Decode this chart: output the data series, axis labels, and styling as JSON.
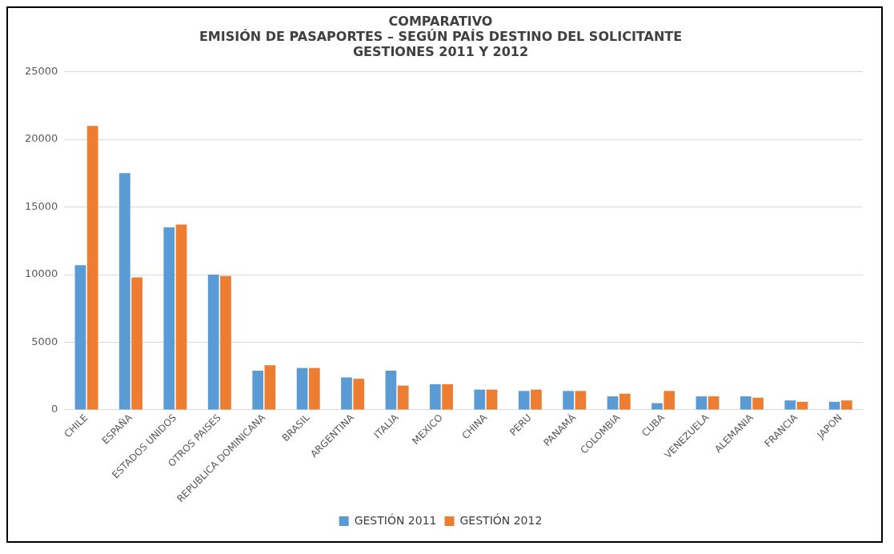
{
  "chart_data": {
    "type": "bar",
    "title": [
      "COMPARATIVO",
      "EMISIÓN DE PASAPORTES – SEGÚN PAÍS DESTINO DEL SOLICITANTE",
      "GESTIONES 2011 Y 2012"
    ],
    "categories": [
      "CHILE",
      "ESPAÑA",
      "ESTADOS UNIDOS",
      "OTROS PAISES",
      "REPUBLICA DOMINICANA",
      "BRASIL",
      "ARGENTINA",
      "ITALIA",
      "MEXICO",
      "CHINA",
      "PERU",
      "PANAMÁ",
      "COLOMBIA",
      "CUBA",
      "VENEZUELA",
      "ALEMANIA",
      "FRANCIA",
      "JAPON"
    ],
    "series": [
      {
        "name": "GESTIÓN 2011",
        "color": "#5b9bd5",
        "values": [
          10700,
          17500,
          13500,
          10000,
          2900,
          3100,
          2400,
          2900,
          1900,
          1500,
          1400,
          1400,
          1000,
          500,
          1000,
          1000,
          700,
          600
        ]
      },
      {
        "name": "GESTIÓN 2012",
        "color": "#ed7d31",
        "values": [
          21000,
          9800,
          13700,
          9900,
          3300,
          3100,
          2300,
          1800,
          1900,
          1500,
          1500,
          1400,
          1200,
          1400,
          1000,
          900,
          600,
          700
        ]
      }
    ],
    "ylim": [
      0,
      25000
    ],
    "yticks": [
      0,
      5000,
      10000,
      15000,
      20000,
      25000
    ],
    "grid": "y",
    "legend": "bottom"
  }
}
